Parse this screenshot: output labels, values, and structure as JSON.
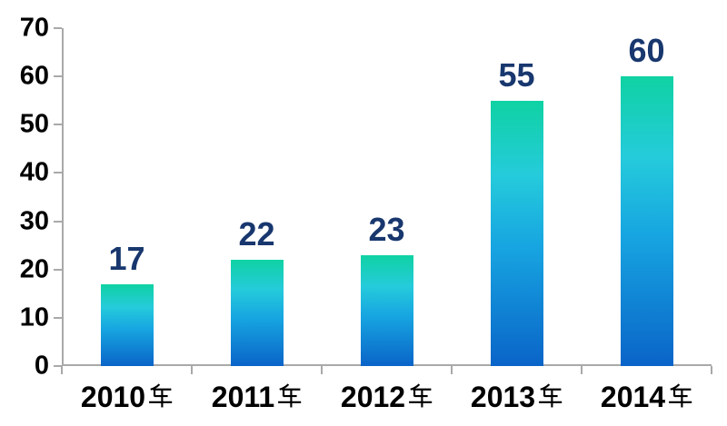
{
  "chart_data": {
    "type": "bar",
    "title": "",
    "xlabel": "",
    "ylabel": "",
    "categories": [
      "2010年",
      "2011年",
      "2012年",
      "2013年",
      "2014年"
    ],
    "values": [
      17,
      22,
      23,
      55,
      60
    ],
    "data_labels": [
      "17",
      "22",
      "23",
      "55",
      "60"
    ],
    "ylim": [
      0,
      70
    ],
    "yticks": [
      0,
      10,
      20,
      30,
      40,
      50,
      60,
      70
    ],
    "grid": false,
    "legend": "none",
    "colors": {
      "bar_gradient_top": "#0FD2A3",
      "bar_gradient_upper_mid": "#25CBDB",
      "bar_gradient_lower_mid": "#17A5E1",
      "bar_gradient_bottom": "#0A64C8",
      "data_label": "#18376E",
      "axis_line": "#A9A9A9",
      "axis_text": "#000000"
    }
  }
}
